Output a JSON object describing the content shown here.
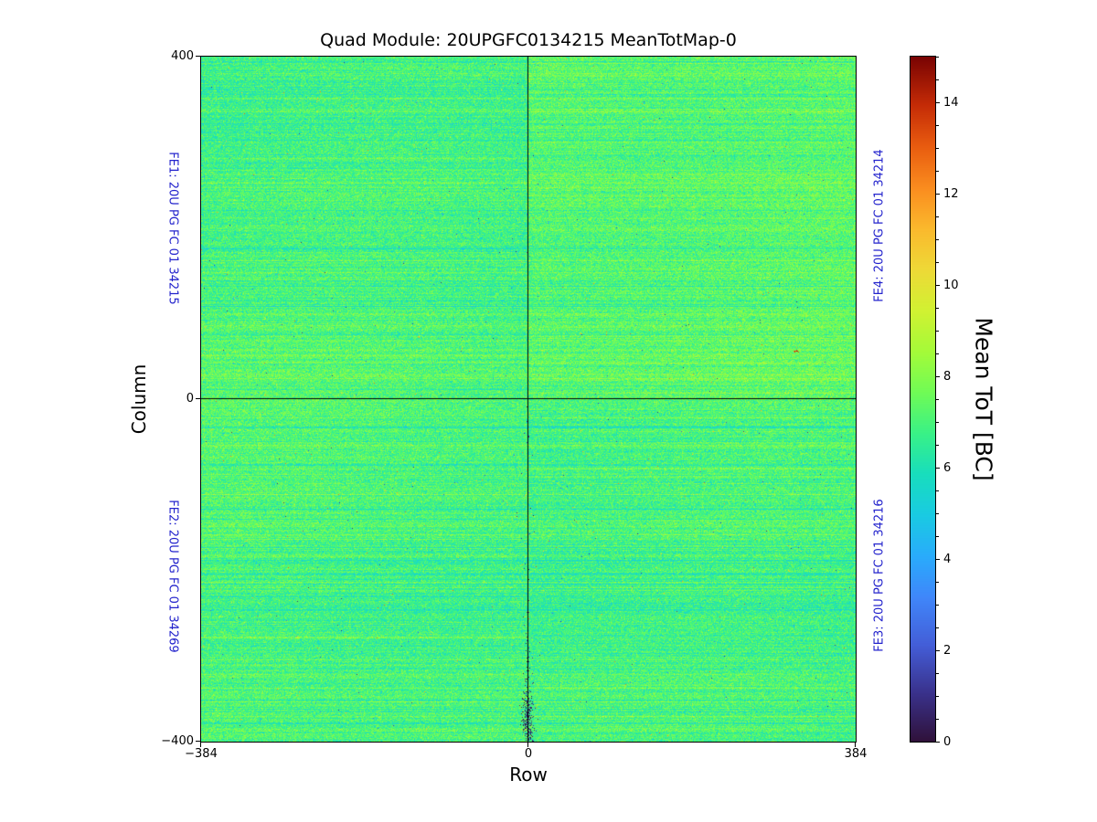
{
  "chart_data": {
    "type": "heatmap",
    "title": "Quad Module: 20UPGFC0134215 MeanTotMap-0",
    "xlabel": "Row",
    "ylabel": "Column",
    "xlim": [
      -384,
      384
    ],
    "ylim": [
      -400,
      400
    ],
    "xticks": [
      "−384",
      "0",
      "384"
    ],
    "yticks": [
      "400",
      "0",
      "−400"
    ],
    "colorbar": {
      "label": "Mean ToT [BC]",
      "ticks": [
        0,
        2,
        4,
        6,
        8,
        10,
        12,
        14
      ],
      "vmin": 0,
      "vmax": 15,
      "colormap": "turbo"
    },
    "quadrants": [
      {
        "id": "FE1",
        "label": "FE1: 20U PG FC 01 34215",
        "position": "top-left",
        "approx_mean_tot": 6.9
      },
      {
        "id": "FE2",
        "label": "FE2: 20U PG FC 01 34269",
        "position": "bottom-left",
        "approx_mean_tot": 7.0
      },
      {
        "id": "FE4",
        "label": "FE4: 20U PG FC 01 34214",
        "position": "top-right",
        "approx_mean_tot": 7.1
      },
      {
        "id": "FE3",
        "label": "FE3: 20U PG FC 01 34216",
        "position": "bottom-right",
        "approx_mean_tot": 6.9
      }
    ],
    "data_summary": {
      "distribution": "per-pixel mean ToT noise around ~7 BC with horizontal streak structure",
      "pixel_sigma": 0.62,
      "features": [
        "black cross lines at row 0 / column 0 chip boundaries",
        "scattered dark (low ToT) pixels along row 0 in bottom half, densest cluster near bottom edge",
        "small dark-red hot spot in FE4 quadrant",
        "occasional cyan (low) and yellow/orange (high) horizontal streak rows"
      ]
    },
    "annotation_color": "#2222cc"
  }
}
